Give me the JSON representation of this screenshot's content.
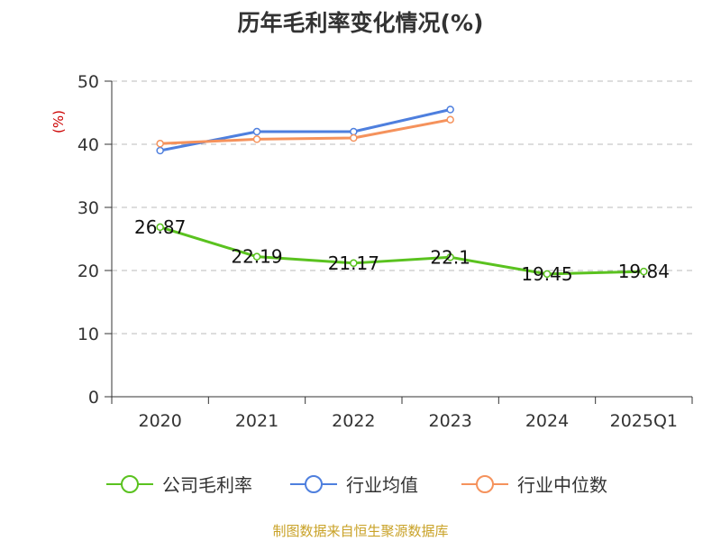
{
  "title": "历年毛利率变化情况(%)",
  "unit": "(%)",
  "source": "制图数据来自恒生聚源数据库",
  "chart_data": {
    "type": "line",
    "categories": [
      "2020",
      "2021",
      "2022",
      "2023",
      "2024",
      "2025Q1"
    ],
    "ylim": [
      0,
      50
    ],
    "yticks": [
      "0",
      "10",
      "20",
      "30",
      "40",
      "50"
    ],
    "grid": true,
    "legend_position": "bottom",
    "series": [
      {
        "name": "公司毛利率",
        "color": "#5ac21f",
        "values": [
          26.87,
          22.19,
          21.17,
          22.1,
          19.45,
          19.84
        ],
        "labels": [
          "26.87",
          "22.19",
          "21.17",
          "22.1",
          "19.45",
          "19.84"
        ]
      },
      {
        "name": "行业均值",
        "color": "#4e7fde",
        "values": [
          39.0,
          42.0,
          42.0,
          45.5,
          null,
          null
        ]
      },
      {
        "name": "行业中位数",
        "color": "#f5925c",
        "values": [
          40.1,
          40.8,
          41.0,
          43.9,
          null,
          null
        ]
      }
    ]
  }
}
